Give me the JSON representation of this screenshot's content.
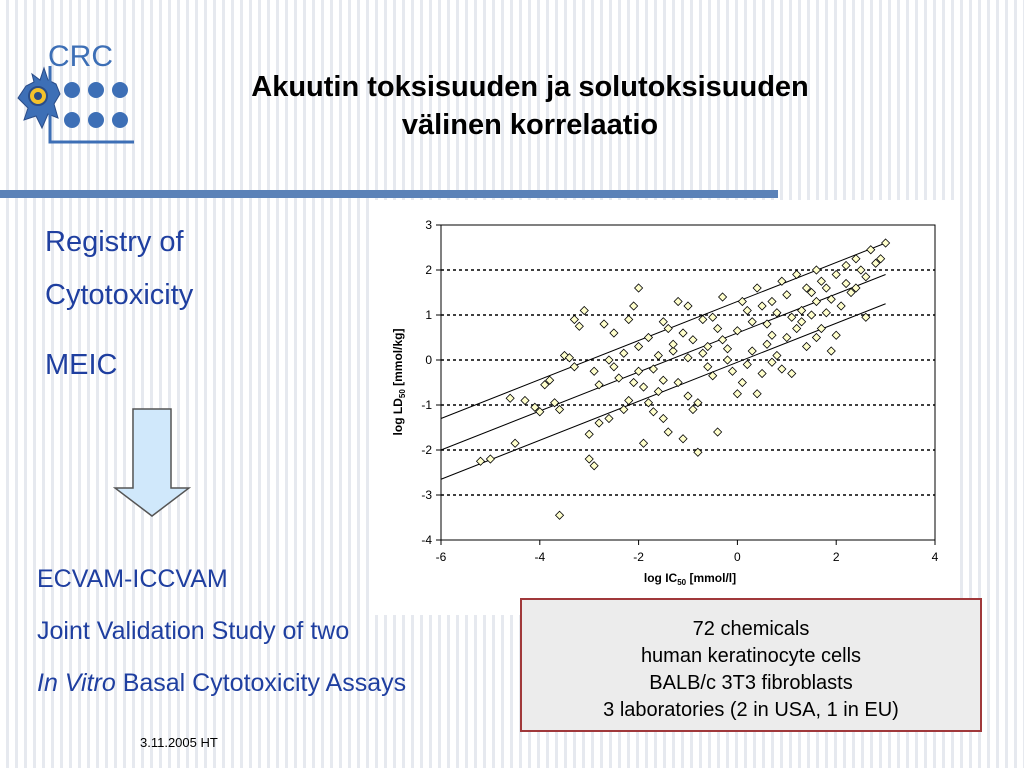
{
  "logo": {
    "text": "CRC"
  },
  "title": {
    "line1": "Akuutin toksisuuden ja solutoksisuuden",
    "line2": "välinen korrelaatio"
  },
  "left": {
    "registry_line1": "Registry of",
    "registry_line2": "Cytotoxicity",
    "meic": "MEIC"
  },
  "bottom": {
    "line1": "ECVAM-ICCVAM",
    "line2": "Joint Validation Study of two",
    "line3_italic": "In Vitro",
    "line3_rest": " Basal Cytotoxicity Assays"
  },
  "info": {
    "line1": "72 chemicals",
    "line2": "human keratinocyte cells",
    "line3": "BALB/c 3T3 fibroblasts",
    "line4": "3 laboratories (2 in USA, 1 in EU)"
  },
  "footer": {
    "date": "3.11.2005 HT"
  },
  "colors": {
    "accent": "#1f3fa0",
    "title_bar": "#5b82b8",
    "marker_fill": "#ffffcc",
    "box_border": "#a0383a"
  },
  "chart_data": {
    "type": "scatter",
    "xlabel_main": "log IC",
    "xlabel_sub": "50",
    "xlabel_unit": " [mmol/l]",
    "ylabel_main": "log LD",
    "ylabel_sub": "50",
    "ylabel_unit": " [mmol/kg]",
    "xlim": [
      -6,
      4
    ],
    "ylim": [
      -4,
      3
    ],
    "xticks": [
      "-6",
      "-4",
      "-2",
      "0",
      "2",
      "4"
    ],
    "yticks": [
      "3",
      "2",
      "1",
      "0",
      "-1",
      "-2",
      "-3",
      "-4"
    ],
    "grid": "horizontal dashed",
    "regression_lines": [
      {
        "x": [
          -6,
          3
        ],
        "y": [
          -1.3,
          2.6
        ]
      },
      {
        "x": [
          -6,
          3
        ],
        "y": [
          -2.0,
          1.9
        ]
      },
      {
        "x": [
          -6,
          3
        ],
        "y": [
          -2.65,
          1.25
        ]
      }
    ],
    "points": [
      [
        -5.2,
        -2.25
      ],
      [
        -5.0,
        -2.2
      ],
      [
        -4.5,
        -1.85
      ],
      [
        -4.3,
        -0.9
      ],
      [
        -4.1,
        -1.05
      ],
      [
        -4.0,
        -1.15
      ],
      [
        -3.9,
        -0.55
      ],
      [
        -3.8,
        -0.45
      ],
      [
        -3.7,
        -0.95
      ],
      [
        -3.6,
        -3.45
      ],
      [
        -3.5,
        0.1
      ],
      [
        -3.4,
        0.05
      ],
      [
        -3.3,
        0.9
      ],
      [
        -3.2,
        0.75
      ],
      [
        -3.1,
        1.1
      ],
      [
        -3.0,
        -1.65
      ],
      [
        -3.0,
        -2.2
      ],
      [
        -2.9,
        -2.35
      ],
      [
        -2.8,
        -1.4
      ],
      [
        -2.7,
        0.8
      ],
      [
        -2.6,
        0.0
      ],
      [
        -2.5,
        -0.15
      ],
      [
        -2.4,
        -0.4
      ],
      [
        -2.3,
        -1.1
      ],
      [
        -2.2,
        0.9
      ],
      [
        -2.1,
        1.2
      ],
      [
        -2.0,
        1.6
      ],
      [
        -2.0,
        0.3
      ],
      [
        -1.9,
        -0.6
      ],
      [
        -1.8,
        -0.95
      ],
      [
        -1.7,
        -0.2
      ],
      [
        -1.6,
        0.1
      ],
      [
        -1.5,
        0.85
      ],
      [
        -1.5,
        -1.3
      ],
      [
        -1.4,
        -1.6
      ],
      [
        -1.3,
        0.2
      ],
      [
        -1.2,
        -0.5
      ],
      [
        -1.1,
        0.6
      ],
      [
        -1.0,
        -0.8
      ],
      [
        -1.0,
        1.2
      ],
      [
        -0.9,
        0.45
      ],
      [
        -0.8,
        -2.05
      ],
      [
        -0.7,
        0.9
      ],
      [
        -0.6,
        0.3
      ],
      [
        -0.5,
        -0.35
      ],
      [
        -0.4,
        -1.6
      ],
      [
        -0.3,
        1.4
      ],
      [
        -0.2,
        0.0
      ],
      [
        -0.1,
        -0.25
      ],
      [
        0.0,
        0.65
      ],
      [
        0.1,
        -0.5
      ],
      [
        0.2,
        1.1
      ],
      [
        0.3,
        0.2
      ],
      [
        0.4,
        1.6
      ],
      [
        0.5,
        -0.3
      ],
      [
        0.6,
        0.8
      ],
      [
        0.7,
        1.3
      ],
      [
        0.8,
        0.1
      ],
      [
        0.9,
        1.75
      ],
      [
        1.0,
        0.5
      ],
      [
        1.1,
        -0.3
      ],
      [
        1.2,
        1.9
      ],
      [
        1.3,
        1.1
      ],
      [
        1.4,
        0.3
      ],
      [
        1.5,
        1.5
      ],
      [
        1.6,
        2.0
      ],
      [
        1.7,
        0.7
      ],
      [
        1.8,
        1.6
      ],
      [
        1.9,
        0.2
      ],
      [
        2.0,
        1.9
      ],
      [
        2.1,
        1.2
      ],
      [
        2.2,
        2.1
      ],
      [
        2.3,
        1.5
      ],
      [
        2.4,
        2.25
      ],
      [
        2.5,
        2.0
      ],
      [
        2.6,
        0.95
      ],
      [
        2.7,
        2.45
      ],
      [
        2.8,
        2.15
      ],
      [
        2.9,
        2.25
      ],
      [
        3.0,
        2.6
      ],
      [
        -2.9,
        -0.25
      ],
      [
        -2.5,
        0.6
      ],
      [
        -2.2,
        -0.9
      ],
      [
        -1.8,
        0.5
      ],
      [
        -1.4,
        0.7
      ],
      [
        -1.2,
        1.3
      ],
      [
        -0.9,
        -1.1
      ],
      [
        -0.6,
        -0.15
      ],
      [
        -0.3,
        0.45
      ],
      [
        0.1,
        1.3
      ],
      [
        0.4,
        -0.75
      ],
      [
        0.7,
        0.55
      ],
      [
        1.0,
        1.45
      ],
      [
        1.3,
        0.85
      ],
      [
        1.6,
        0.5
      ],
      [
        1.9,
        1.35
      ],
      [
        2.2,
        1.7
      ],
      [
        -3.3,
        -0.15
      ],
      [
        -1.6,
        -0.7
      ],
      [
        -0.8,
        -0.95
      ],
      [
        0.2,
        -0.1
      ],
      [
        0.8,
        1.05
      ],
      [
        1.2,
        0.7
      ],
      [
        1.8,
        1.05
      ],
      [
        -2.6,
        -1.3
      ],
      [
        -1.9,
        -1.85
      ],
      [
        -1.1,
        -1.75
      ],
      [
        -0.5,
        0.95
      ],
      [
        0.3,
        0.85
      ],
      [
        0.9,
        -0.2
      ],
      [
        1.5,
        1.0
      ],
      [
        2.0,
        0.55
      ],
      [
        -2.3,
        0.15
      ],
      [
        -1.5,
        -0.45
      ],
      [
        -0.7,
        0.15
      ],
      [
        0.0,
        -0.75
      ],
      [
        0.6,
        0.35
      ],
      [
        1.1,
        0.95
      ],
      [
        1.7,
        1.75
      ],
      [
        2.4,
        1.6
      ],
      [
        -4.6,
        -0.85
      ],
      [
        -3.6,
        -1.1
      ],
      [
        -2.8,
        -0.55
      ],
      [
        -2.0,
        -0.25
      ],
      [
        -1.3,
        0.35
      ],
      [
        -0.4,
        0.7
      ],
      [
        0.5,
        1.2
      ],
      [
        1.4,
        1.6
      ],
      [
        2.6,
        1.85
      ],
      [
        -1.0,
        0.05
      ],
      [
        -0.2,
        0.25
      ],
      [
        0.7,
        -0.05
      ],
      [
        1.6,
        1.3
      ],
      [
        -2.1,
        -0.5
      ],
      [
        -1.7,
        -1.15
      ]
    ]
  }
}
